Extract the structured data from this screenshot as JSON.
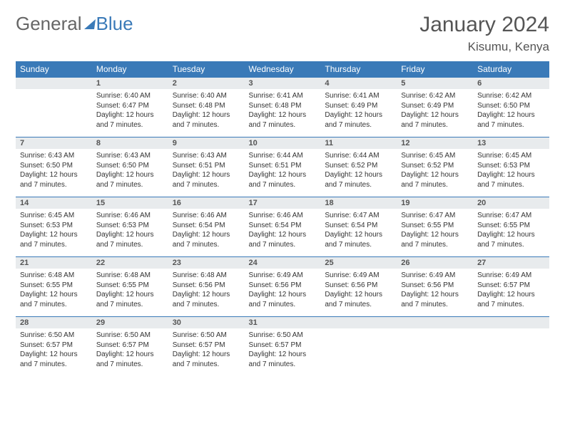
{
  "brand": {
    "part1": "General",
    "part2": "Blue"
  },
  "title": "January 2024",
  "location": "Kisumu, Kenya",
  "colors": {
    "header_bg": "#3a7ab8",
    "header_text": "#ffffff",
    "daynum_bg": "#e8ebed",
    "border": "#3a7ab8",
    "body_text": "#333333",
    "title_text": "#555555"
  },
  "typography": {
    "month_title_pt": 30,
    "location_pt": 17,
    "day_header_pt": 12,
    "daynum_pt": 11,
    "body_pt": 10
  },
  "layout": {
    "cols": 7,
    "rows": 5,
    "first_day_offset": 1
  },
  "weekdays": [
    "Sunday",
    "Monday",
    "Tuesday",
    "Wednesday",
    "Thursday",
    "Friday",
    "Saturday"
  ],
  "days": [
    {
      "n": 1,
      "sunrise": "6:40 AM",
      "sunset": "6:47 PM",
      "daylight": "12 hours and 7 minutes."
    },
    {
      "n": 2,
      "sunrise": "6:40 AM",
      "sunset": "6:48 PM",
      "daylight": "12 hours and 7 minutes."
    },
    {
      "n": 3,
      "sunrise": "6:41 AM",
      "sunset": "6:48 PM",
      "daylight": "12 hours and 7 minutes."
    },
    {
      "n": 4,
      "sunrise": "6:41 AM",
      "sunset": "6:49 PM",
      "daylight": "12 hours and 7 minutes."
    },
    {
      "n": 5,
      "sunrise": "6:42 AM",
      "sunset": "6:49 PM",
      "daylight": "12 hours and 7 minutes."
    },
    {
      "n": 6,
      "sunrise": "6:42 AM",
      "sunset": "6:50 PM",
      "daylight": "12 hours and 7 minutes."
    },
    {
      "n": 7,
      "sunrise": "6:43 AM",
      "sunset": "6:50 PM",
      "daylight": "12 hours and 7 minutes."
    },
    {
      "n": 8,
      "sunrise": "6:43 AM",
      "sunset": "6:50 PM",
      "daylight": "12 hours and 7 minutes."
    },
    {
      "n": 9,
      "sunrise": "6:43 AM",
      "sunset": "6:51 PM",
      "daylight": "12 hours and 7 minutes."
    },
    {
      "n": 10,
      "sunrise": "6:44 AM",
      "sunset": "6:51 PM",
      "daylight": "12 hours and 7 minutes."
    },
    {
      "n": 11,
      "sunrise": "6:44 AM",
      "sunset": "6:52 PM",
      "daylight": "12 hours and 7 minutes."
    },
    {
      "n": 12,
      "sunrise": "6:45 AM",
      "sunset": "6:52 PM",
      "daylight": "12 hours and 7 minutes."
    },
    {
      "n": 13,
      "sunrise": "6:45 AM",
      "sunset": "6:53 PM",
      "daylight": "12 hours and 7 minutes."
    },
    {
      "n": 14,
      "sunrise": "6:45 AM",
      "sunset": "6:53 PM",
      "daylight": "12 hours and 7 minutes."
    },
    {
      "n": 15,
      "sunrise": "6:46 AM",
      "sunset": "6:53 PM",
      "daylight": "12 hours and 7 minutes."
    },
    {
      "n": 16,
      "sunrise": "6:46 AM",
      "sunset": "6:54 PM",
      "daylight": "12 hours and 7 minutes."
    },
    {
      "n": 17,
      "sunrise": "6:46 AM",
      "sunset": "6:54 PM",
      "daylight": "12 hours and 7 minutes."
    },
    {
      "n": 18,
      "sunrise": "6:47 AM",
      "sunset": "6:54 PM",
      "daylight": "12 hours and 7 minutes."
    },
    {
      "n": 19,
      "sunrise": "6:47 AM",
      "sunset": "6:55 PM",
      "daylight": "12 hours and 7 minutes."
    },
    {
      "n": 20,
      "sunrise": "6:47 AM",
      "sunset": "6:55 PM",
      "daylight": "12 hours and 7 minutes."
    },
    {
      "n": 21,
      "sunrise": "6:48 AM",
      "sunset": "6:55 PM",
      "daylight": "12 hours and 7 minutes."
    },
    {
      "n": 22,
      "sunrise": "6:48 AM",
      "sunset": "6:55 PM",
      "daylight": "12 hours and 7 minutes."
    },
    {
      "n": 23,
      "sunrise": "6:48 AM",
      "sunset": "6:56 PM",
      "daylight": "12 hours and 7 minutes."
    },
    {
      "n": 24,
      "sunrise": "6:49 AM",
      "sunset": "6:56 PM",
      "daylight": "12 hours and 7 minutes."
    },
    {
      "n": 25,
      "sunrise": "6:49 AM",
      "sunset": "6:56 PM",
      "daylight": "12 hours and 7 minutes."
    },
    {
      "n": 26,
      "sunrise": "6:49 AM",
      "sunset": "6:56 PM",
      "daylight": "12 hours and 7 minutes."
    },
    {
      "n": 27,
      "sunrise": "6:49 AM",
      "sunset": "6:57 PM",
      "daylight": "12 hours and 7 minutes."
    },
    {
      "n": 28,
      "sunrise": "6:50 AM",
      "sunset": "6:57 PM",
      "daylight": "12 hours and 7 minutes."
    },
    {
      "n": 29,
      "sunrise": "6:50 AM",
      "sunset": "6:57 PM",
      "daylight": "12 hours and 7 minutes."
    },
    {
      "n": 30,
      "sunrise": "6:50 AM",
      "sunset": "6:57 PM",
      "daylight": "12 hours and 7 minutes."
    },
    {
      "n": 31,
      "sunrise": "6:50 AM",
      "sunset": "6:57 PM",
      "daylight": "12 hours and 7 minutes."
    }
  ],
  "labels": {
    "sunrise": "Sunrise:",
    "sunset": "Sunset:",
    "daylight": "Daylight:"
  }
}
